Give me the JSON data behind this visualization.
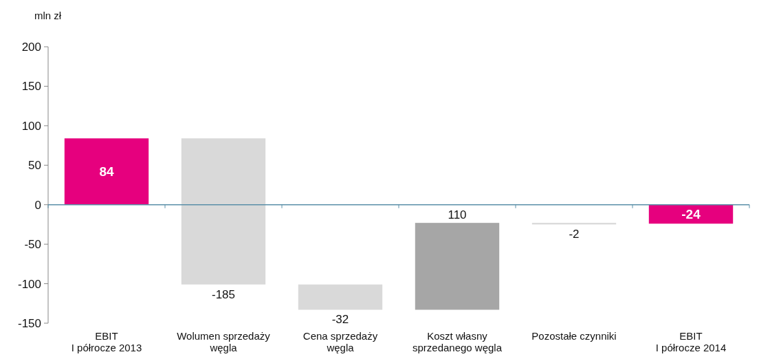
{
  "chart_data": {
    "type": "bar",
    "ylabel": "mln zł",
    "categories": [
      "EBIT\nI półrocze 2013",
      "Wolumen sprzedaży\nwęgla",
      "Cena sprzedaży\nwęgla",
      "Koszt własny\nsprzedanego węgla",
      "Pozostałe czynniki",
      "EBIT\nI półrocze 2014"
    ],
    "values": [
      84,
      -185,
      -32,
      110,
      -2,
      -24
    ],
    "base": [
      0,
      84,
      -101,
      -133,
      -23,
      0
    ],
    "colors": [
      "#e6007e",
      "#d9d9d9",
      "#d9d9d9",
      "#a6a6a6",
      "#d9d9d9",
      "#e6007e"
    ],
    "ylim": [
      -150,
      200
    ],
    "yticks": [
      -150,
      -100,
      -50,
      0,
      50,
      100,
      150,
      200
    ],
    "ref_lines": [
      {
        "axis": "y",
        "value": 0,
        "color": "#5a8fa8"
      }
    ],
    "data_labels": true,
    "grid": false
  }
}
